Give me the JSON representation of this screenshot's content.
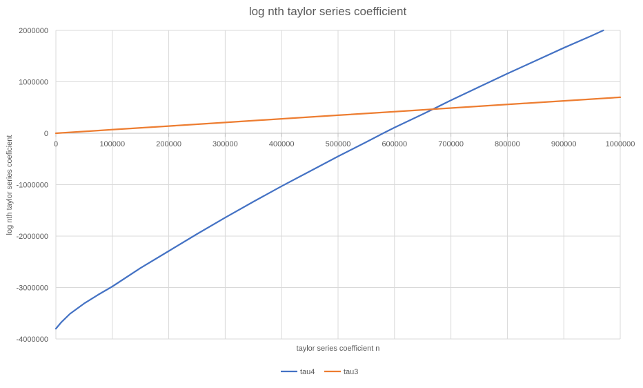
{
  "chart_data": {
    "type": "line",
    "title": "log nth taylor series coefficient",
    "xlabel": "taylor series coefficient n",
    "ylabel": "log nth taylor series coeficient",
    "xlim": [
      0,
      1000000
    ],
    "ylim": [
      -4000000,
      2000000
    ],
    "x_ticks": [
      0,
      100000,
      200000,
      300000,
      400000,
      500000,
      600000,
      700000,
      800000,
      900000,
      1000000
    ],
    "y_ticks": [
      2000000,
      1000000,
      0,
      -1000000,
      -2000000,
      -3000000,
      -4000000
    ],
    "x_tick_labels": [
      "0",
      "100000",
      "200000",
      "300000",
      "400000",
      "500000",
      "600000",
      "700000",
      "800000",
      "900000",
      "1000000"
    ],
    "y_tick_labels": [
      "2000000",
      "1000000",
      "0",
      "-1000000",
      "-2000000",
      "-3000000",
      "-4000000"
    ],
    "grid": true,
    "legend_position": "bottom",
    "series": [
      {
        "name": "tau4",
        "color": "#4472C4",
        "x": [
          0,
          10000,
          25000,
          50000,
          75000,
          100000,
          150000,
          200000,
          250000,
          300000,
          350000,
          400000,
          450000,
          500000,
          550000,
          580000,
          600000,
          650000,
          700000,
          750000,
          800000,
          850000,
          900000,
          950000,
          970000
        ],
        "y": [
          -3800000,
          -3670000,
          -3510000,
          -3310000,
          -3140000,
          -2980000,
          -2620000,
          -2290000,
          -1960000,
          -1640000,
          -1330000,
          -1030000,
          -740000,
          -450000,
          -170000,
          0,
          110000,
          370000,
          640000,
          900000,
          1160000,
          1410000,
          1660000,
          1900000,
          2000000
        ]
      },
      {
        "name": "tau3",
        "color": "#ED7D31",
        "x": [
          0,
          100000,
          200000,
          300000,
          400000,
          500000,
          600000,
          700000,
          800000,
          900000,
          1000000
        ],
        "y": [
          0,
          70000,
          140000,
          210000,
          280000,
          350000,
          420000,
          490000,
          560000,
          630000,
          700000
        ]
      }
    ]
  }
}
